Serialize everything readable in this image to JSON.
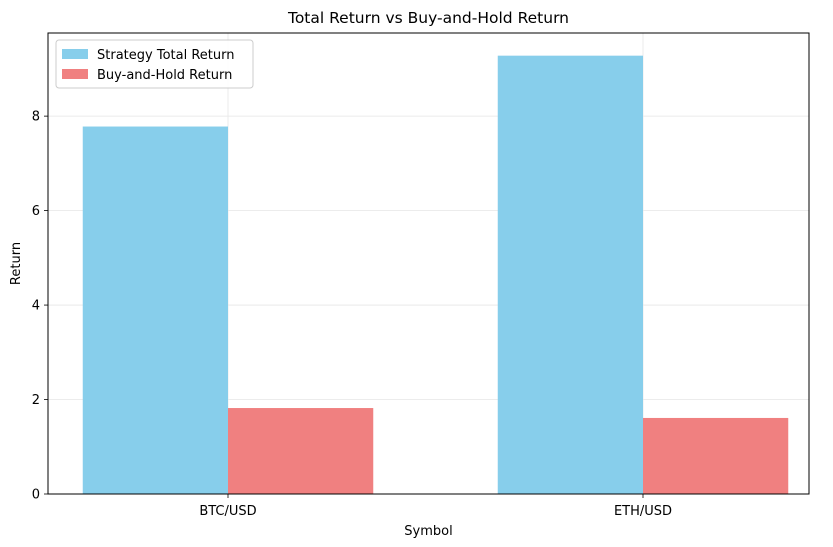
{
  "chart_data": {
    "type": "bar",
    "title": "Total Return vs Buy-and-Hold Return",
    "xlabel": "Symbol",
    "ylabel": "Return",
    "categories": [
      "BTC/USD",
      "ETH/USD"
    ],
    "series": [
      {
        "name": "Strategy Total Return",
        "values": [
          7.78,
          9.28
        ],
        "color": "#87ceeb"
      },
      {
        "name": "Buy-and-Hold Return",
        "values": [
          1.82,
          1.61
        ],
        "color": "#f08080"
      }
    ],
    "ylim": [
      0,
      9.76
    ],
    "yticks": [
      0,
      2,
      4,
      6,
      8
    ],
    "grid": true,
    "legend_position": "top-left"
  }
}
